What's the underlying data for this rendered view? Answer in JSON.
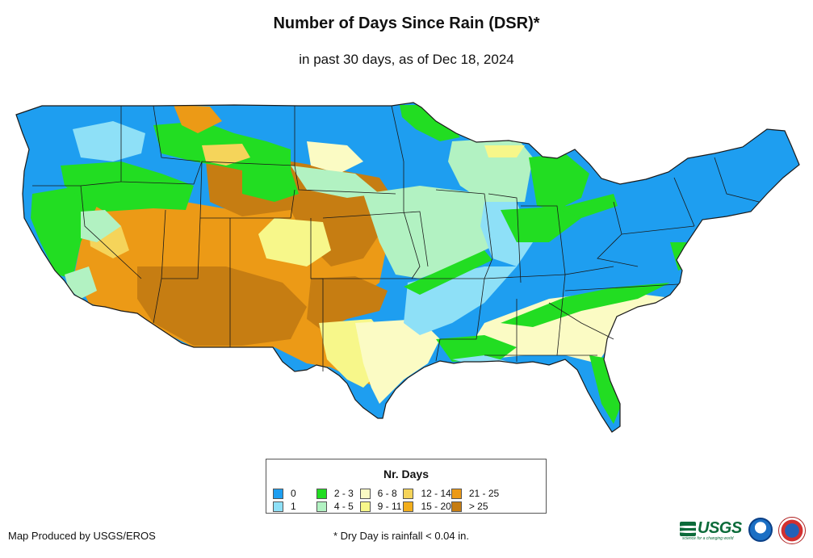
{
  "title": "Number of Days Since Rain (DSR)*",
  "subtitle": "in past 30 days, as of Dec 18, 2024",
  "legend": {
    "title": "Nr. Days",
    "items": [
      {
        "label": "0",
        "color": "#1e9ef0"
      },
      {
        "label": "1",
        "color": "#8ee0f7"
      },
      {
        "label": "2 - 3",
        "color": "#22dd22"
      },
      {
        "label": "4 - 5",
        "color": "#b2f2c2"
      },
      {
        "label": "6 - 8",
        "color": "#fbfbc4"
      },
      {
        "label": "9 - 11",
        "color": "#f7f78a"
      },
      {
        "label": "12 - 14",
        "color": "#f5d45a"
      },
      {
        "label": "15 - 20",
        "color": "#f2ae1c"
      },
      {
        "label": "21 - 25",
        "color": "#ec9a16"
      },
      {
        "label": "> 25",
        "color": "#c67d12"
      }
    ]
  },
  "credit": "Map Produced by USGS/EROS",
  "footnote": "* Dry Day is rainfall < 0.04 in.",
  "logos": {
    "usgs_text": "USGS",
    "usgs_tagline": "science for a changing world"
  }
}
